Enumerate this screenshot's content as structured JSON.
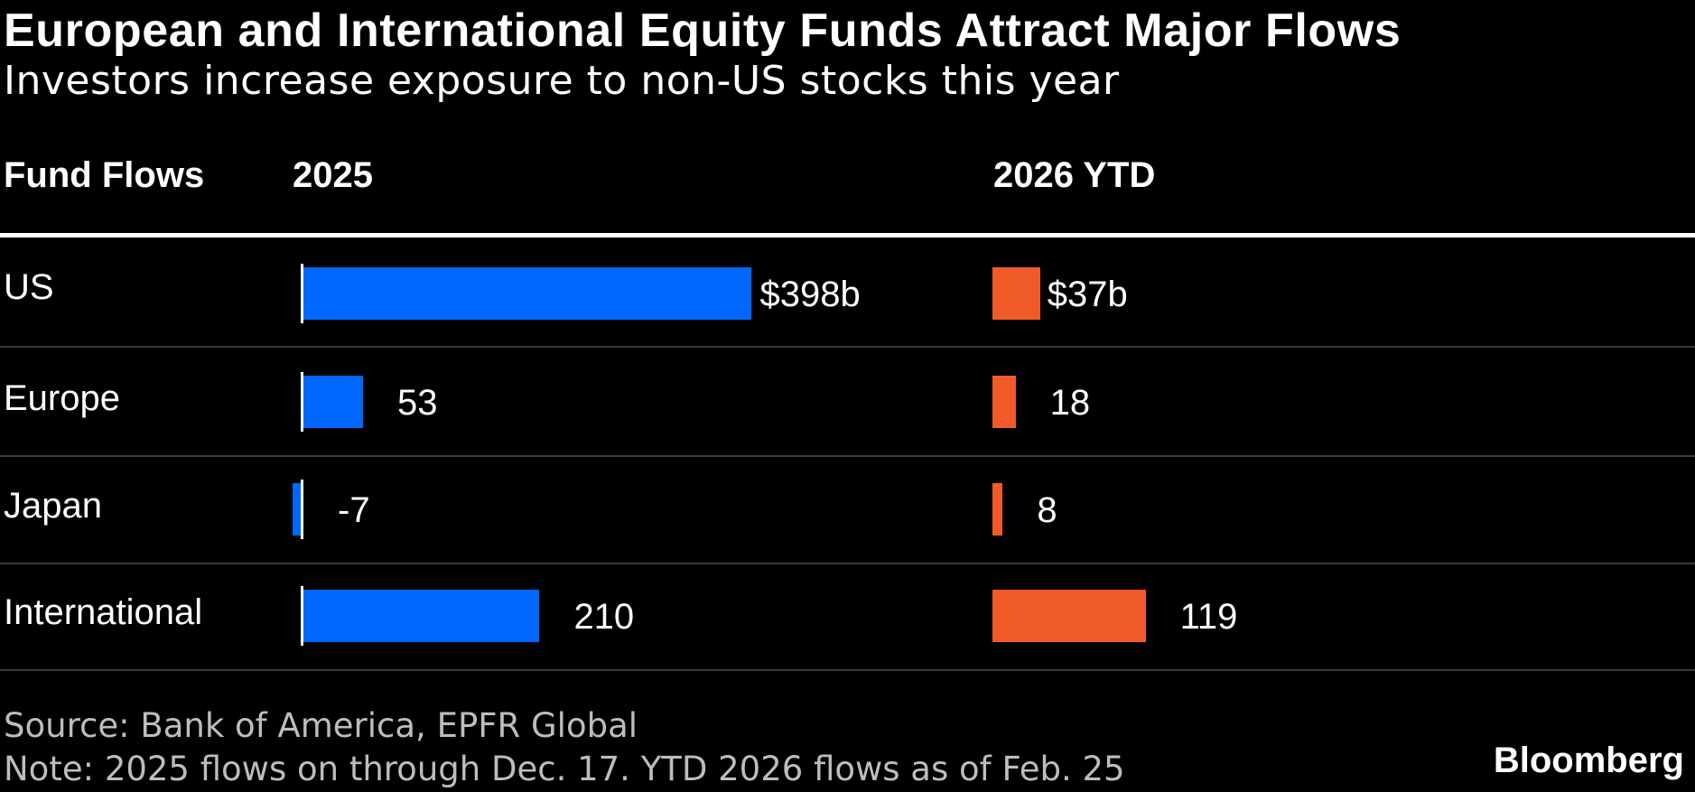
{
  "header": {
    "title": "European and International Equity Funds Attract Major Flows",
    "subtitle": "Investors increase exposure to non-US stocks this year"
  },
  "columns": {
    "label_header": "Fund Flows",
    "col1_header": "2025",
    "col2_header": "2026 YTD"
  },
  "chart_data": {
    "type": "bar",
    "orientation": "horizontal",
    "title": "European and International Equity Funds Attract Major Flows",
    "subtitle": "Investors increase exposure to non-US stocks this year",
    "categories": [
      "US",
      "Europe",
      "Japan",
      "International"
    ],
    "series": [
      {
        "name": "2025",
        "color": "#0068ff",
        "values": [
          398,
          53,
          -7,
          210
        ],
        "labels": [
          "$398b",
          "53",
          "-7",
          "210"
        ]
      },
      {
        "name": "2026 YTD",
        "color": "#f15a29",
        "values": [
          37,
          18,
          8,
          119
        ],
        "labels": [
          "$37b",
          "18",
          "8",
          "119"
        ]
      }
    ],
    "unit": "$ billions"
  },
  "footer": {
    "source": "Source: Bank of America, EPFR Global",
    "note": "Note: 2025 flows on through Dec. 17. YTD 2026 flows as of Feb. 25",
    "brand": "Bloomberg"
  }
}
